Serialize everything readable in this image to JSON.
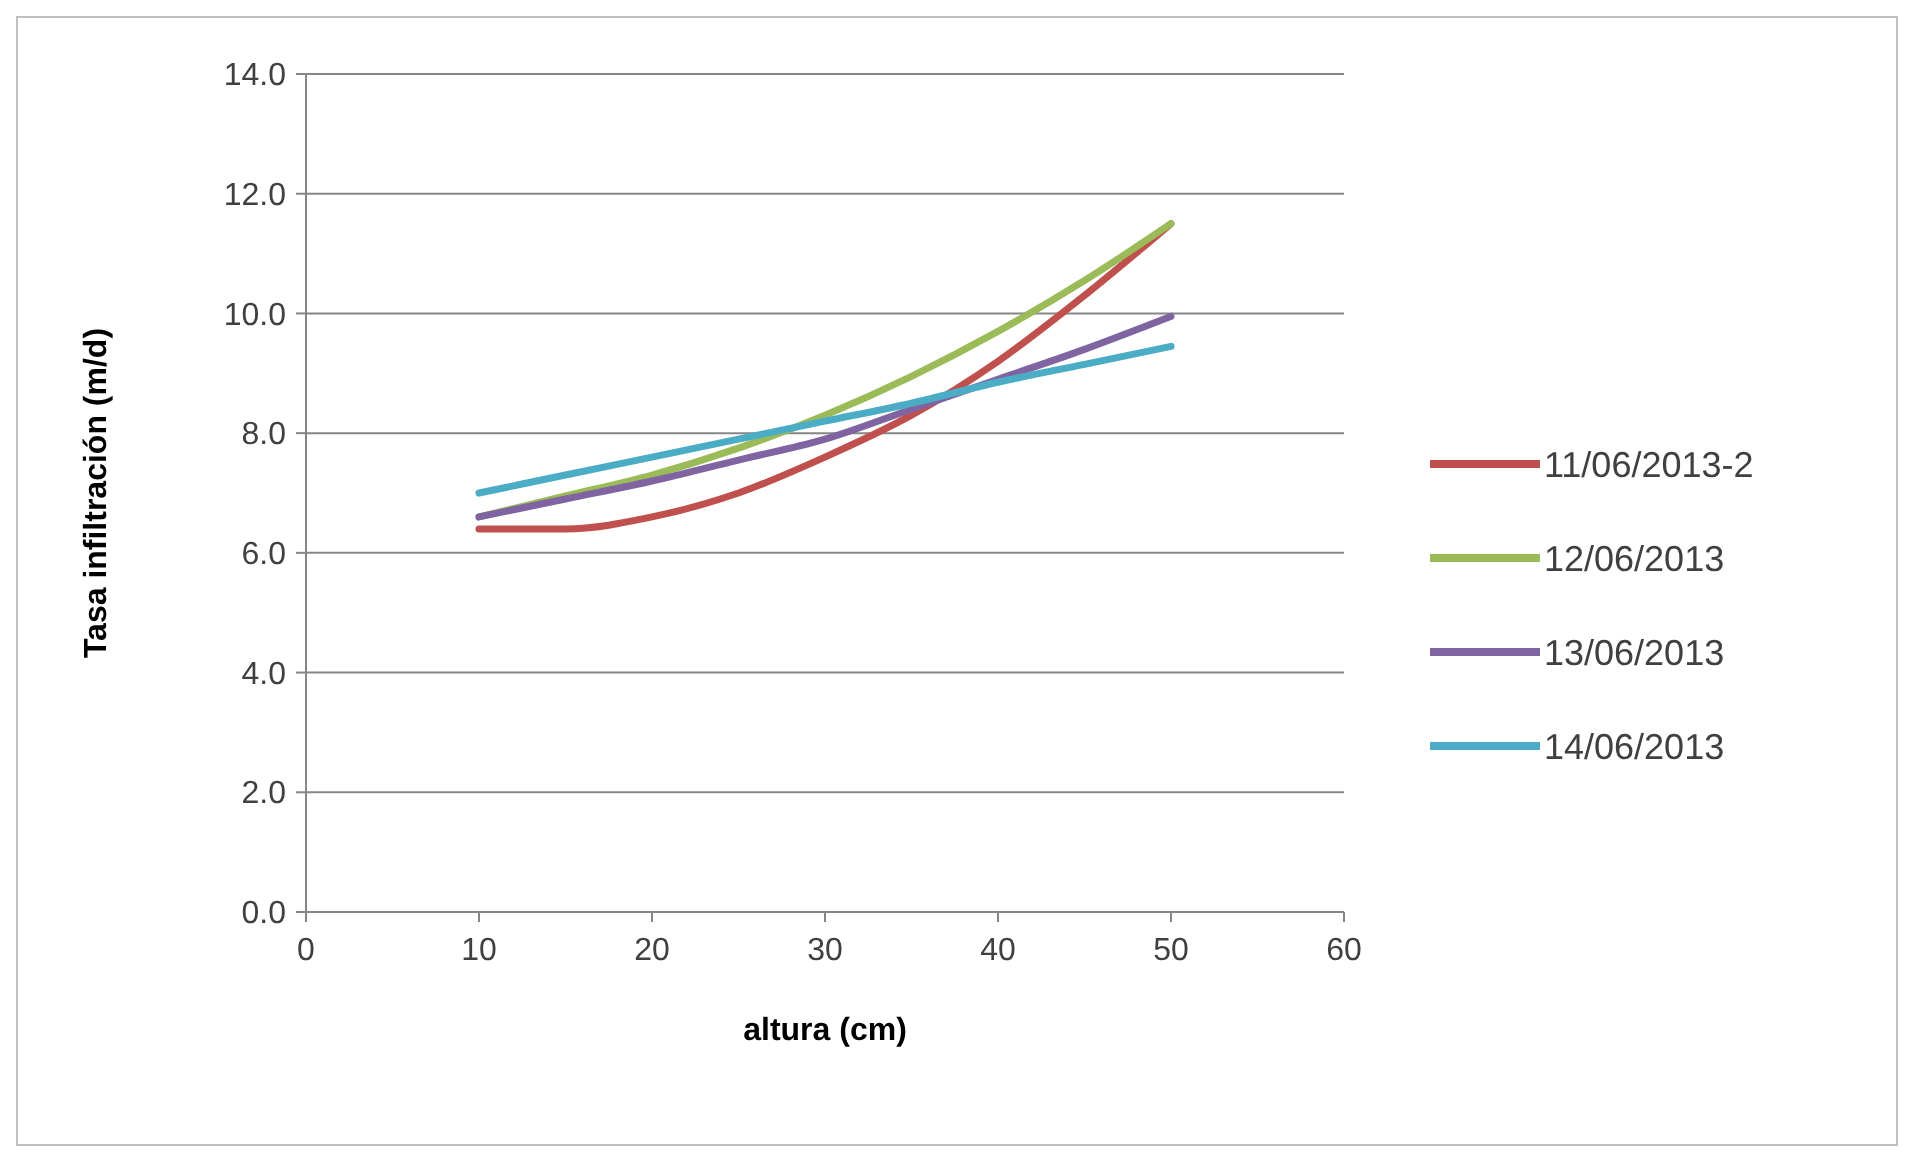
{
  "chart_data": {
    "type": "line",
    "xlabel": "altura (cm)",
    "ylabel": "Tasa infiltración (m/d)",
    "xlim": [
      0,
      60
    ],
    "xticks": [
      0,
      10,
      20,
      30,
      40,
      50,
      60
    ],
    "ylim": [
      0,
      14
    ],
    "yticks": [
      {
        "value": 0,
        "label": "0.0"
      },
      {
        "value": 2,
        "label": "2.0"
      },
      {
        "value": 4,
        "label": "4.0"
      },
      {
        "value": 6,
        "label": "6.0"
      },
      {
        "value": 8,
        "label": "8.0"
      },
      {
        "value": 10,
        "label": "10.0"
      },
      {
        "value": 12,
        "label": "12.0"
      },
      {
        "value": 14,
        "label": "14.0"
      }
    ],
    "grid": "y",
    "legend": "right",
    "marker": "none",
    "line_style": "solid",
    "x": [
      10,
      15,
      20,
      25,
      30,
      35,
      40,
      45,
      50
    ],
    "series": [
      {
        "name": "11/06/2013-2",
        "color": "#c0504d",
        "values": [
          6.4,
          6.4,
          6.6,
          7.0,
          7.6,
          8.3,
          9.2,
          10.3,
          11.5
        ]
      },
      {
        "name": "12/06/2013",
        "color": "#9bbb59",
        "values": [
          6.6,
          6.95,
          7.3,
          7.75,
          8.3,
          8.95,
          9.7,
          10.55,
          11.5
        ]
      },
      {
        "name": "13/06/2013",
        "color": "#8064a2",
        "values": [
          6.6,
          6.9,
          7.2,
          7.55,
          7.9,
          8.4,
          8.9,
          9.4,
          9.95
        ]
      },
      {
        "name": "14/06/2013",
        "color": "#4bacc6",
        "values": [
          7.0,
          7.3,
          7.6,
          7.9,
          8.2,
          8.5,
          8.85,
          9.15,
          9.45
        ]
      }
    ]
  }
}
